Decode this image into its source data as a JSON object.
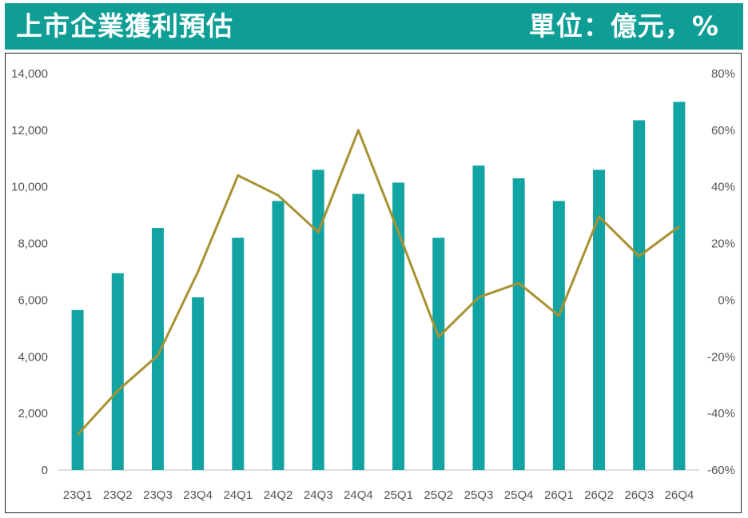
{
  "header": {
    "title": "上市企業獲利預估",
    "unit": "單位：億元，%"
  },
  "colors": {
    "bar": "#12a3a3",
    "line": "#a89232",
    "header": "#0f9e96"
  },
  "chart_data": {
    "type": "bar",
    "categories": [
      "23Q1",
      "23Q2",
      "23Q3",
      "23Q4",
      "24Q1",
      "24Q2",
      "24Q3",
      "24Q4",
      "25Q1",
      "25Q2",
      "25Q3",
      "25Q4",
      "26Q1",
      "26Q2",
      "26Q3",
      "26Q4"
    ],
    "series": [
      {
        "type": "bar",
        "axis": "left",
        "values": [
          5650,
          6950,
          8550,
          6100,
          8200,
          9500,
          10600,
          9750,
          10150,
          8200,
          10750,
          10300,
          9500,
          10600,
          12350,
          13000
        ]
      },
      {
        "type": "line",
        "axis": "right",
        "values": [
          -47.5,
          -32,
          -19.5,
          10,
          44,
          37,
          24,
          60,
          24,
          -13,
          1,
          6,
          -5.5,
          29.5,
          15.5,
          26
        ]
      }
    ],
    "y_left": {
      "ylim": [
        0,
        14000
      ],
      "ticks": [
        "0",
        "2,000",
        "4,000",
        "6,000",
        "8,000",
        "10,000",
        "12,000",
        "14,000"
      ]
    },
    "y_right": {
      "ylim": [
        -60,
        80
      ],
      "ticks": [
        "-60%",
        "-40%",
        "-20%",
        "0%",
        "20%",
        "40%",
        "60%",
        "80%"
      ]
    },
    "grid": false,
    "legend": "none"
  }
}
